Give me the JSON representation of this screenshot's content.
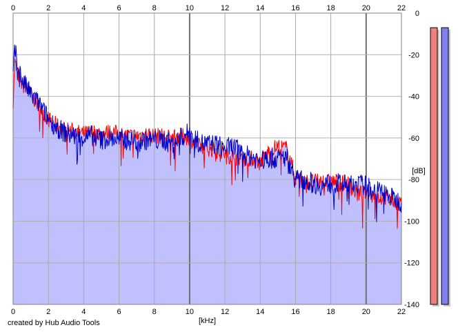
{
  "credit": "created by Hub Audio Tools",
  "chart_data": {
    "type": "area",
    "title": "",
    "xlabel": "[kHz]",
    "ylabel": "[dB]",
    "xlim": [
      0,
      22
    ],
    "ylim": [
      -140,
      0
    ],
    "x_ticks": [
      0,
      2,
      4,
      6,
      8,
      10,
      12,
      14,
      16,
      18,
      20,
      22
    ],
    "y_ticks": [
      0,
      -20,
      -40,
      -60,
      -80,
      -100,
      -120,
      -140
    ],
    "grid": true,
    "colors": {
      "area": "#c0c0ff",
      "left": "#ff0000",
      "right": "#0000c8",
      "meter_left": "#f08080",
      "meter_right": "#8080f0"
    },
    "series": [
      {
        "channel": "left",
        "x": [
          0,
          0.1,
          0.3,
          0.5,
          1,
          1.5,
          2,
          2.5,
          3,
          3.5,
          4,
          4.5,
          5,
          5.5,
          6,
          6.5,
          7,
          7.5,
          8,
          8.5,
          9,
          9.5,
          10,
          10.5,
          11,
          11.5,
          12,
          12.5,
          13,
          13.5,
          14,
          14.5,
          15,
          15.5,
          16,
          16.5,
          17,
          17.5,
          18,
          18.5,
          19,
          19.5,
          20,
          20.5,
          21,
          21.5,
          22
        ],
        "values": [
          -42,
          -24,
          -30,
          -34,
          -39,
          -45,
          -51,
          -54,
          -56,
          -57,
          -58,
          -57,
          -58,
          -57,
          -58,
          -59,
          -59,
          -58,
          -59,
          -59,
          -60,
          -59,
          -60,
          -64,
          -65,
          -66,
          -68,
          -69,
          -70,
          -70,
          -72,
          -66,
          -64,
          -65,
          -79,
          -81,
          -81,
          -81,
          -81,
          -81,
          -82,
          -87,
          -86,
          -88,
          -89,
          -90,
          -91
        ]
      },
      {
        "channel": "right",
        "x": [
          0,
          0.1,
          0.3,
          0.5,
          1,
          1.5,
          2,
          2.5,
          3,
          3.5,
          4,
          4.5,
          5,
          5.5,
          6,
          6.5,
          7,
          7.5,
          8,
          8.5,
          9,
          9.5,
          10,
          10.5,
          11,
          11.5,
          12,
          12.5,
          13,
          13.5,
          14,
          14.5,
          15,
          15.5,
          16,
          16.5,
          17,
          17.5,
          18,
          18.5,
          19,
          19.5,
          20,
          20.5,
          21,
          21.5,
          22
        ],
        "values": [
          -30,
          -18,
          -26,
          -32,
          -39,
          -44,
          -51,
          -55,
          -58,
          -59,
          -60,
          -59,
          -61,
          -60,
          -61,
          -61,
          -62,
          -61,
          -61,
          -61,
          -63,
          -60,
          -57,
          -62,
          -63,
          -63,
          -65,
          -64,
          -68,
          -69,
          -71,
          -70,
          -70,
          -69,
          -80,
          -80,
          -82,
          -83,
          -82,
          -82,
          -83,
          -82,
          -83,
          -85,
          -86,
          -89,
          -91
        ]
      }
    ],
    "meters": [
      {
        "channel": "left",
        "level_db": -7
      },
      {
        "channel": "right",
        "level_db": -7
      }
    ]
  }
}
